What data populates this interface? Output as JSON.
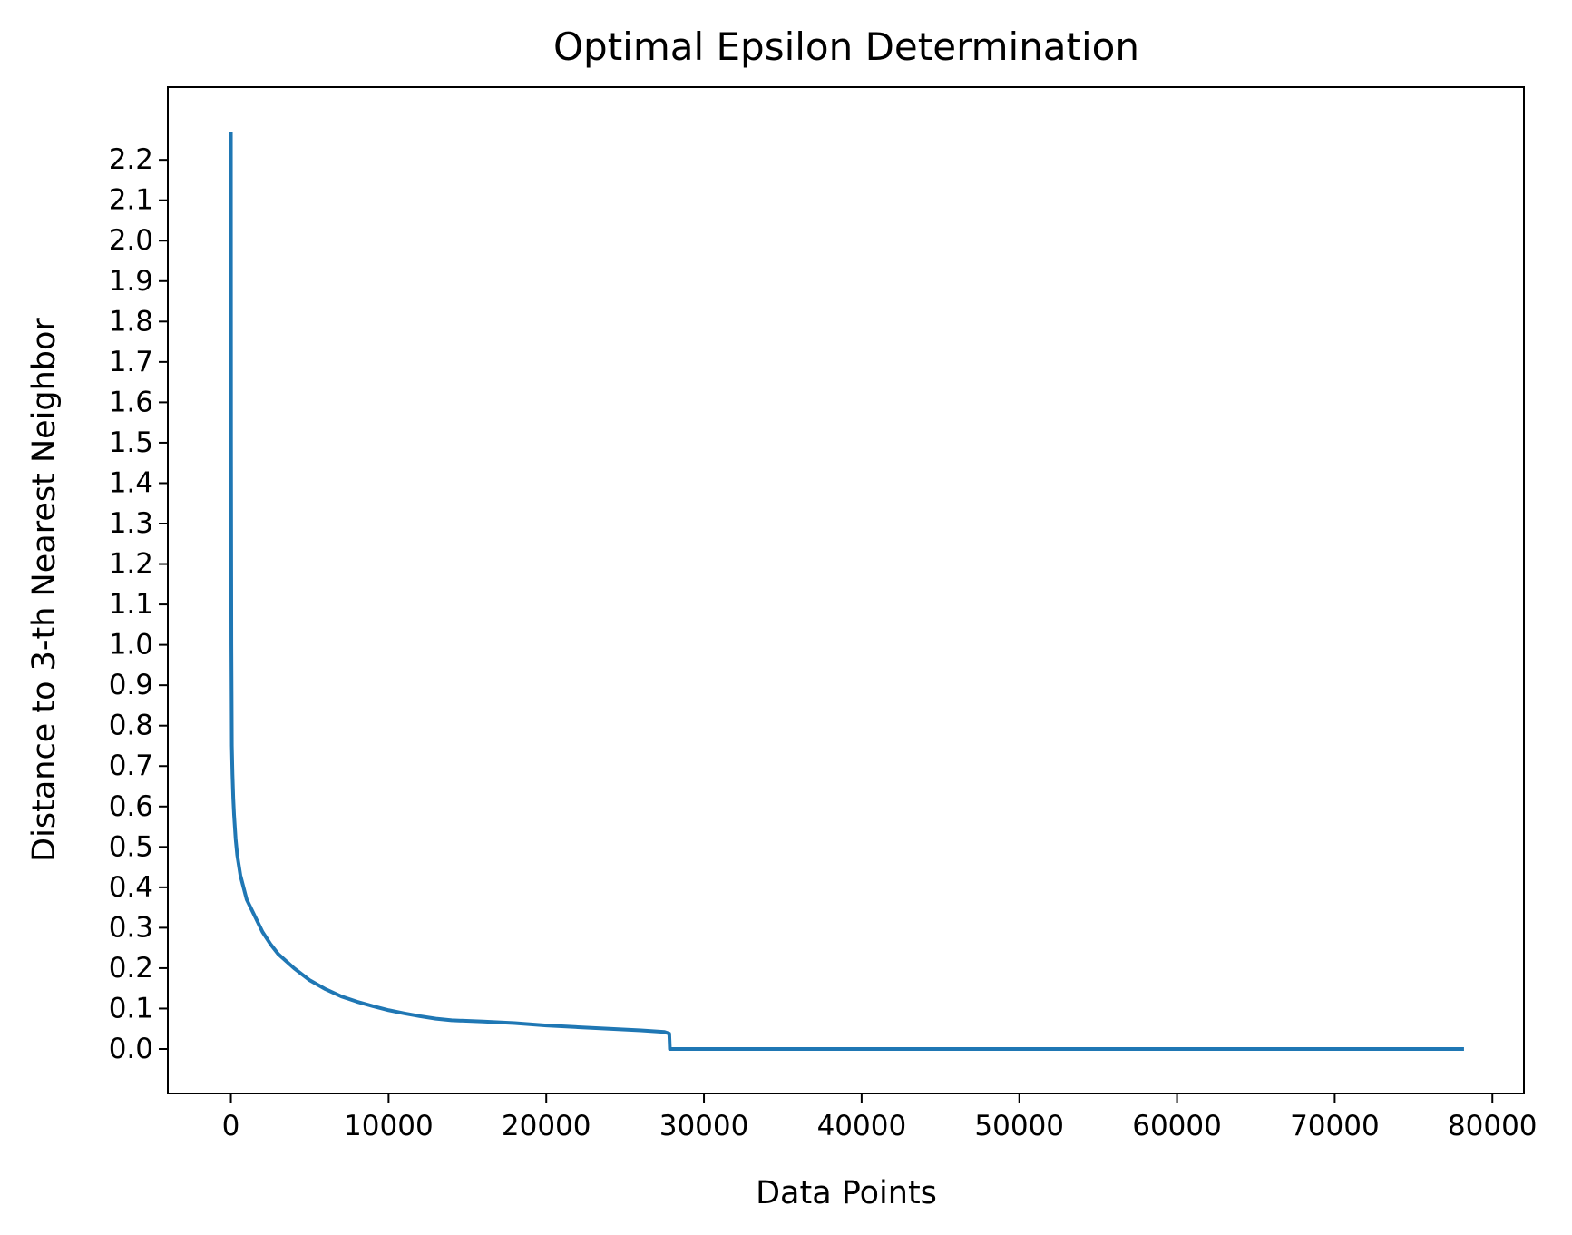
{
  "chart_data": {
    "type": "line",
    "title": "Optimal Epsilon Determination",
    "xlabel": "Data Points",
    "ylabel": "Distance to 3-th Nearest Neighbor",
    "xlim": [
      -4000,
      82000
    ],
    "ylim": [
      -0.11,
      2.38
    ],
    "xticks": [
      0,
      10000,
      20000,
      30000,
      40000,
      50000,
      60000,
      70000,
      80000
    ],
    "xtick_labels": [
      "0",
      "10000",
      "20000",
      "30000",
      "40000",
      "50000",
      "60000",
      "70000",
      "80000"
    ],
    "yticks": [
      0.0,
      0.1,
      0.2,
      0.3,
      0.4,
      0.5,
      0.6,
      0.7,
      0.8,
      0.9,
      1.0,
      1.1,
      1.2,
      1.3,
      1.4,
      1.5,
      1.6,
      1.7,
      1.8,
      1.9,
      2.0,
      2.1,
      2.2
    ],
    "ytick_labels": [
      "0.0",
      "0.1",
      "0.2",
      "0.3",
      "0.4",
      "0.5",
      "0.6",
      "0.7",
      "0.8",
      "0.9",
      "1.0",
      "1.1",
      "1.2",
      "1.3",
      "1.4",
      "1.5",
      "1.6",
      "1.7",
      "1.8",
      "1.9",
      "2.0",
      "2.1",
      "2.2"
    ],
    "grid": false,
    "series": [
      {
        "color": "#1f77b4",
        "x": [
          0,
          10,
          30,
          60,
          100,
          150,
          200,
          300,
          400,
          600,
          800,
          1000,
          1500,
          2000,
          2500,
          3000,
          4000,
          5000,
          6000,
          7000,
          8000,
          9000,
          10000,
          11000,
          12000,
          13000,
          14000,
          16000,
          18000,
          20000,
          22000,
          24000,
          26000,
          27500,
          27800,
          27820,
          27840,
          28000,
          30000,
          40000,
          50000,
          60000,
          70000,
          78200
        ],
        "y": [
          2.27,
          1.5,
          1.0,
          0.75,
          0.68,
          0.62,
          0.58,
          0.52,
          0.48,
          0.43,
          0.4,
          0.37,
          0.33,
          0.29,
          0.26,
          0.235,
          0.2,
          0.17,
          0.148,
          0.13,
          0.117,
          0.106,
          0.096,
          0.088,
          0.081,
          0.075,
          0.071,
          0.068,
          0.064,
          0.058,
          0.054,
          0.05,
          0.046,
          0.042,
          0.038,
          0.02,
          0.0,
          0.0,
          0.0,
          0.0,
          0.0,
          0.0,
          0.0,
          0.0
        ]
      }
    ]
  }
}
